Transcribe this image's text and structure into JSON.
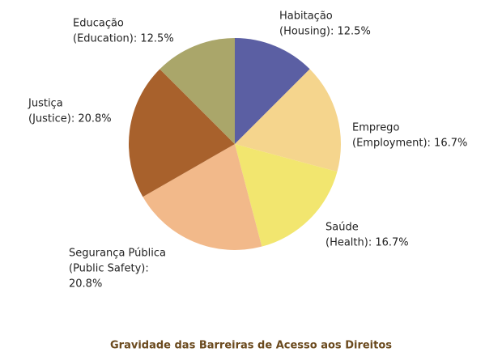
{
  "chart_data": {
    "type": "pie",
    "title": "Gravidade das Barreiras de Acesso aos Direitos",
    "categories": [
      "Habitação",
      "Emprego",
      "Saúde",
      "Segurança Pública",
      "Justiça",
      "Educação"
    ],
    "values": [
      12.5,
      16.7,
      16.7,
      20.8,
      20.8,
      12.5
    ],
    "labels": [
      [
        "Habitação",
        "(Housing): 12.5%"
      ],
      [
        "Emprego",
        "(Employment): 16.7%"
      ],
      [
        "Saúde",
        "(Health): 16.7%"
      ],
      [
        "Segurança Pública",
        "(Public Safety):",
        "20.8%"
      ],
      [
        "Justiça",
        "(Justice): 20.8%"
      ],
      [
        "Educação",
        "(Education): 12.5%"
      ]
    ],
    "colors": [
      "#5b5fa3",
      "#f5d58d",
      "#f2e66f",
      "#f2b98a",
      "#a8612c",
      "#aaa66a"
    ]
  }
}
